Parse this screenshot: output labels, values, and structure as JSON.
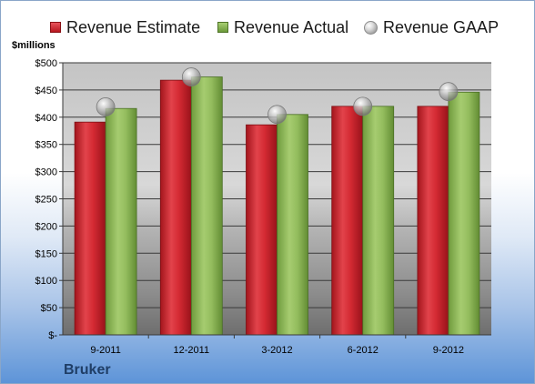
{
  "legend": {
    "estimate": "Revenue Estimate",
    "actual": "Revenue Actual",
    "gaap": "Revenue GAAP"
  },
  "units_label": "$millions",
  "company": "Bruker",
  "colors": {
    "estimate": "#c8202a",
    "actual": "#8db55a",
    "gaap": "#bfbfbf"
  },
  "chart_data": {
    "type": "bar",
    "categories": [
      "9-2011",
      "12-2011",
      "3-2012",
      "6-2012",
      "9-2012"
    ],
    "series": [
      {
        "name": "Revenue Estimate",
        "values": [
          391,
          468,
          386,
          420,
          420
        ]
      },
      {
        "name": "Revenue Actual",
        "values": [
          416,
          474,
          405,
          420,
          446
        ]
      },
      {
        "name": "Revenue GAAP",
        "values": [
          419,
          474,
          405,
          420,
          447
        ]
      }
    ],
    "ylabel": "$millions",
    "ylim": [
      0,
      500
    ],
    "yticks": [
      0,
      50,
      100,
      150,
      200,
      250,
      300,
      350,
      400,
      450,
      500
    ],
    "ytick_labels": [
      "$-",
      "$50",
      "$100",
      "$150",
      "$200",
      "$250",
      "$300",
      "$350",
      "$400",
      "$450",
      "$500"
    ],
    "grid": true,
    "legend": "top"
  }
}
